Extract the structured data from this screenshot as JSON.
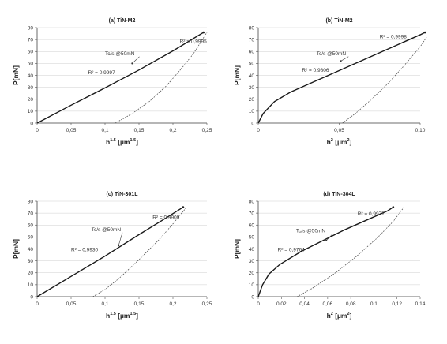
{
  "chart_data": [
    {
      "type": "line",
      "title": "(a) TiN-M2",
      "xlabel": "h^1.5 [µm^1.5]",
      "xlabel_base": "h",
      "xlabel_sup": "1.5",
      "xlabel_unit": "[µm",
      "xlabel_unit_sup": "1.5",
      "xlabel_close": "]",
      "ylabel": "P[mN]",
      "xlim": [
        0,
        0.25
      ],
      "ylim": [
        0,
        80
      ],
      "xticks": [
        "0",
        "0,05",
        "0,1",
        "0,15",
        "0,2",
        "0,25"
      ],
      "yticks": [
        "0",
        "10",
        "20",
        "30",
        "40",
        "50",
        "60",
        "70",
        "80"
      ],
      "series": [
        {
          "role": "loading",
          "points": [
            [
              0,
              0
            ],
            [
              0.05,
              15
            ],
            [
              0.1,
              29.5
            ],
            [
              0.15,
              44.5
            ],
            [
              0.2,
              60.5
            ],
            [
              0.245,
              76
            ]
          ]
        },
        {
          "role": "unloading",
          "points": [
            [
              0.115,
              0
            ],
            [
              0.14,
              8
            ],
            [
              0.165,
              18
            ],
            [
              0.19,
              31
            ],
            [
              0.21,
              44
            ],
            [
              0.23,
              58
            ],
            [
              0.25,
              76
            ]
          ]
        }
      ],
      "annotations": [
        {
          "text": "R² = 0,9995",
          "at": [
            0.21,
            67
          ]
        },
        {
          "text": "Tc/s @50mN",
          "at": [
            0.1,
            57
          ]
        },
        {
          "text": "R² = 0,9997",
          "at": [
            0.075,
            41
          ]
        }
      ]
    },
    {
      "type": "line",
      "title": "(b) TiN-M2",
      "xlabel": "h² [µm²]",
      "xlabel_base": "h",
      "xlabel_sup": "2",
      "xlabel_unit": "[µm",
      "xlabel_unit_sup": "2",
      "xlabel_close": "]",
      "ylabel": "P[mN]",
      "xlim": [
        0,
        0.1
      ],
      "ylim": [
        0,
        80
      ],
      "xticks": [
        "0",
        "0,05",
        "0,10"
      ],
      "yticks": [
        "0",
        "10",
        "20",
        "30",
        "40",
        "50",
        "60",
        "70",
        "80"
      ],
      "series": [
        {
          "role": "loading",
          "points": [
            [
              0,
              0
            ],
            [
              0.003,
              8
            ],
            [
              0.01,
              18
            ],
            [
              0.02,
              26
            ],
            [
              0.04,
              38
            ],
            [
              0.06,
              50
            ],
            [
              0.08,
              62
            ],
            [
              0.1,
              74
            ],
            [
              0.103,
              76
            ]
          ]
        },
        {
          "role": "unloading",
          "points": [
            [
              0.052,
              0
            ],
            [
              0.06,
              8
            ],
            [
              0.07,
              20
            ],
            [
              0.08,
              33
            ],
            [
              0.09,
              48
            ],
            [
              0.1,
              64
            ],
            [
              0.104,
              72
            ]
          ]
        }
      ],
      "annotations": [
        {
          "text": "R² = 0,9998",
          "at": [
            0.075,
            71
          ]
        },
        {
          "text": "Tc/s @50mN",
          "at": [
            0.036,
            57
          ]
        },
        {
          "text": "R² = 0,9806",
          "at": [
            0.027,
            43
          ]
        }
      ]
    },
    {
      "type": "line",
      "title": "(c) TiN-301L",
      "xlabel": "h^1.5 [µm^1.5]",
      "xlabel_base": "h",
      "xlabel_sup": "1.5",
      "xlabel_unit": "[µm",
      "xlabel_unit_sup": "1.5",
      "xlabel_close": "]",
      "ylabel": "P[mN]",
      "xlim": [
        0,
        0.25
      ],
      "ylim": [
        0,
        80
      ],
      "xticks": [
        "0",
        "0,05",
        "0,1",
        "0,15",
        "0,2",
        "0,25"
      ],
      "yticks": [
        "0",
        "10",
        "20",
        "30",
        "40",
        "50",
        "60",
        "70",
        "80"
      ],
      "series": [
        {
          "role": "loading",
          "points": [
            [
              0,
              0
            ],
            [
              0.05,
              17
            ],
            [
              0.1,
              34
            ],
            [
              0.15,
              52
            ],
            [
              0.19,
              66
            ],
            [
              0.215,
              75
            ]
          ]
        },
        {
          "role": "unloading",
          "points": [
            [
              0.082,
              0
            ],
            [
              0.1,
              6
            ],
            [
              0.12,
              15
            ],
            [
              0.15,
              31
            ],
            [
              0.18,
              48
            ],
            [
              0.2,
              61
            ],
            [
              0.22,
              75
            ]
          ]
        }
      ],
      "annotations": [
        {
          "text": "R² = 0,9909",
          "at": [
            0.17,
            65
          ]
        },
        {
          "text": "Tc/s @50mN",
          "at": [
            0.08,
            55
          ]
        },
        {
          "text": "R² = 0,9930",
          "at": [
            0.05,
            38
          ]
        }
      ]
    },
    {
      "type": "line",
      "title": "(d) TiN-304L",
      "xlabel": "h² [µm²]",
      "xlabel_base": "h",
      "xlabel_sup": "2",
      "xlabel_unit": "[µm",
      "xlabel_unit_sup": "2",
      "xlabel_close": "]",
      "ylabel": "P[mN]",
      "xlim": [
        0,
        0.15
      ],
      "ylim": [
        0,
        80
      ],
      "xticks": [
        "0",
        "0,02",
        "0,04",
        "0,06",
        "0,08",
        "0,1",
        "0,12",
        "0,14"
      ],
      "yticks": [
        "0",
        "10",
        "20",
        "30",
        "40",
        "50",
        "60",
        "70",
        "80"
      ],
      "series": [
        {
          "role": "loading",
          "points": [
            [
              0,
              0
            ],
            [
              0.004,
              10
            ],
            [
              0.01,
              19
            ],
            [
              0.02,
              27
            ],
            [
              0.04,
              38
            ],
            [
              0.06,
              47
            ],
            [
              0.08,
              56
            ],
            [
              0.1,
              64
            ],
            [
              0.12,
              72
            ],
            [
              0.125,
              75
            ]
          ]
        },
        {
          "role": "unloading",
          "points": [
            [
              0.036,
              0
            ],
            [
              0.05,
              7
            ],
            [
              0.07,
              19
            ],
            [
              0.09,
              33
            ],
            [
              0.11,
              49
            ],
            [
              0.125,
              63
            ],
            [
              0.135,
              75
            ]
          ]
        }
      ],
      "annotations": [
        {
          "text": "R² = 0,9977",
          "at": [
            0.092,
            68
          ]
        },
        {
          "text": "Tc/s @50mN",
          "at": [
            0.035,
            54
          ]
        },
        {
          "text": "R² = 0,9764",
          "at": [
            0.018,
            38
          ]
        }
      ]
    }
  ]
}
